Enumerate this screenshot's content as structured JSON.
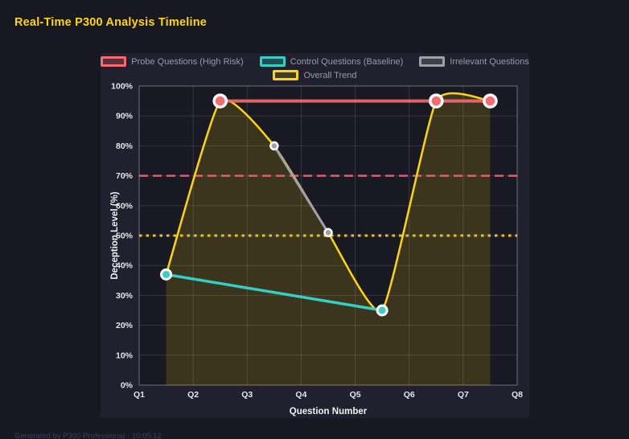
{
  "header": {
    "title": "Real-Time P300 Analysis Timeline"
  },
  "footer": {
    "text": "Generated by P300 Professional - 10:05:12"
  },
  "colors": {
    "page_bg": "#181823",
    "panel_bg": "#20202e",
    "plot_bg": "#191923",
    "grid": "rgba(255,255,255,0.13)",
    "plot_border": "rgba(255,255,255,0.28)",
    "title": "#ffd700",
    "tick_text": "#e6e6ee",
    "axis_title_text": "#f0f0f5",
    "legend_text": "#9a9aa6",
    "marker_ring": "#ffffff",
    "footer_text": "#3f3f54"
  },
  "chart_data": {
    "type": "line",
    "title": "Real-Time P300 Analysis Timeline",
    "xlabel": "Question Number",
    "ylabel": "Deception Level (%)",
    "xlim": [
      1,
      8
    ],
    "ylim": [
      0,
      100
    ],
    "grid": true,
    "legend_position": "top",
    "x_tick_values": [
      1,
      2,
      3,
      4,
      5,
      6,
      7,
      8
    ],
    "x_tick_labels": [
      "Q1",
      "Q2",
      "Q3",
      "Q4",
      "Q5",
      "Q6",
      "Q7",
      "Q8"
    ],
    "y_tick_values": [
      0,
      10,
      20,
      30,
      40,
      50,
      60,
      70,
      80,
      90,
      100
    ],
    "y_tick_labels": [
      "0%",
      "10%",
      "20%",
      "30%",
      "40%",
      "50%",
      "60%",
      "70%",
      "80%",
      "90%",
      "100%"
    ],
    "series": [
      {
        "name": "Probe Questions (High Risk)",
        "render": "segments",
        "color": "#f56b6f",
        "fill": "rgba(245,107,111,0.25)",
        "line_width": 4,
        "line_opacity": 0.9,
        "marker_radius": 7.5,
        "marker_ring_width": 3.5,
        "points": [
          {
            "x": 2.5,
            "y": 95
          },
          {
            "x": 6.5,
            "y": 95
          },
          {
            "x": 7.5,
            "y": 95
          }
        ]
      },
      {
        "name": "Control Questions (Baseline)",
        "render": "segments",
        "color": "#36cfc4",
        "fill": "rgba(54,207,196,0.25)",
        "line_width": 3.5,
        "line_opacity": 1,
        "marker_radius": 6,
        "marker_ring_width": 3,
        "points": [
          {
            "x": 1.5,
            "y": 37
          },
          {
            "x": 5.5,
            "y": 25
          }
        ]
      },
      {
        "name": "Irrelevant Questions",
        "render": "segments",
        "color": "#a0a0a8",
        "fill": "rgba(160,160,168,0.25)",
        "line_width": 3,
        "line_opacity": 1,
        "marker_radius": 4.5,
        "marker_ring_width": 2.5,
        "points": [
          {
            "x": 3.5,
            "y": 80
          },
          {
            "x": 4.5,
            "y": 51
          }
        ]
      },
      {
        "name": "Overall Trend",
        "render": "smooth-area",
        "color": "#ffd700",
        "fill": "rgba(255,215,0,0.15)",
        "line_width": 2.5,
        "line_opacity": 1,
        "marker_radius": 0,
        "marker_ring_width": 0,
        "points": [
          {
            "x": 1.5,
            "y": 37
          },
          {
            "x": 2.5,
            "y": 95
          },
          {
            "x": 3.5,
            "y": 80
          },
          {
            "x": 4.5,
            "y": 51
          },
          {
            "x": 5.5,
            "y": 25
          },
          {
            "x": 6.5,
            "y": 95
          },
          {
            "x": 7.5,
            "y": 95
          }
        ]
      }
    ],
    "thresholds": [
      {
        "value": 70,
        "color": "#f4536e",
        "style": "dashed"
      },
      {
        "value": 50,
        "color": "#e6c229",
        "style": "dotted"
      }
    ],
    "legend_rows": [
      [
        0,
        1,
        2
      ],
      [
        3
      ]
    ]
  }
}
